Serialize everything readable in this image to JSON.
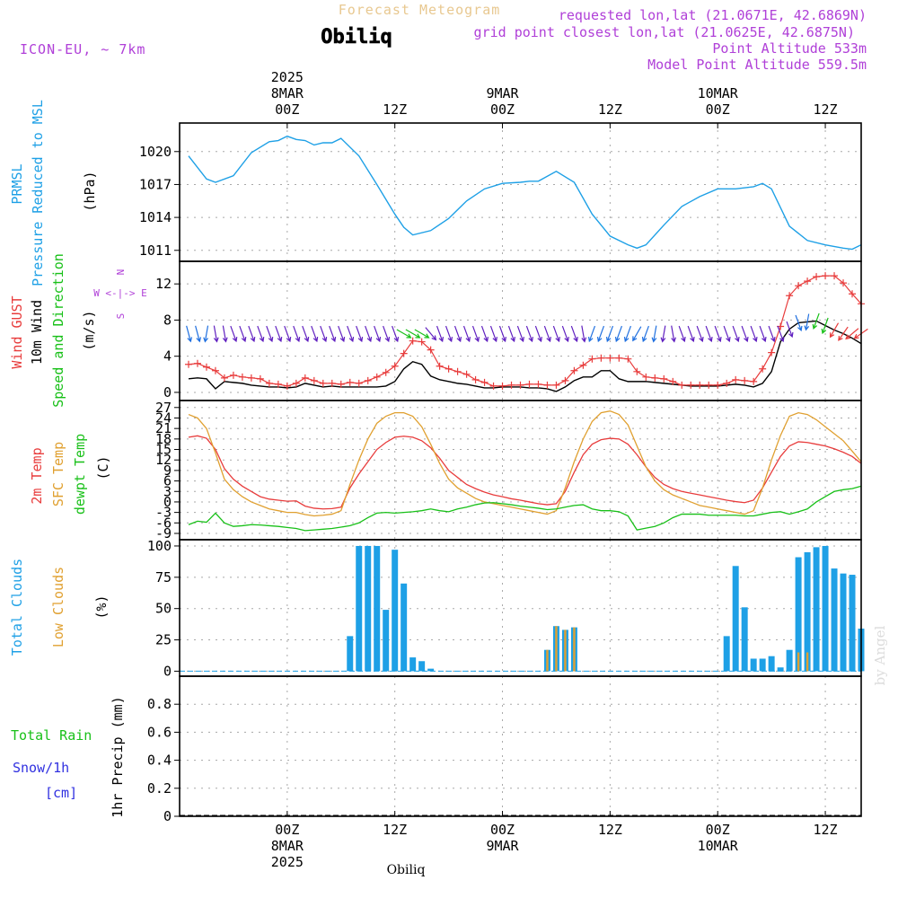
{
  "header": {
    "title": "Forecast Meteogram",
    "location": "Obiliq",
    "model": "ICON-EU, ~ 7km",
    "requested": "requested lon,lat (21.0671E, 42.6869N)",
    "gridpoint": "grid point closest lon,lat (21.0625E, 42.6875N)",
    "point_alt": "Point Altitude 533m",
    "model_alt": "Model Point Altitude 559.5m",
    "footer_location": "Obiliq",
    "watermark": "by Angel"
  },
  "colors": {
    "pressure": "#1ea0e6",
    "gust": "#e83c3c",
    "wind": "#000000",
    "wind_dir": "#18c018",
    "temp2m": "#e83c3c",
    "sfc": "#e0a030",
    "dewpt": "#18c018",
    "total_clouds": "#1ea0e6",
    "low_clouds": "#e0a030",
    "rain": "#18c018",
    "snow": "#3030e0",
    "purple": "#b040d8"
  },
  "time_axis": {
    "top": [
      {
        "h": 0,
        "lines": [
          "2025",
          "8MAR",
          "00Z"
        ]
      },
      {
        "h": 12,
        "lines": [
          "12Z"
        ]
      },
      {
        "h": 24,
        "lines": [
          "9MAR",
          "00Z"
        ]
      },
      {
        "h": 36,
        "lines": [
          "12Z"
        ]
      },
      {
        "h": 48,
        "lines": [
          "10MAR",
          "00Z"
        ]
      },
      {
        "h": 60,
        "lines": [
          "12Z"
        ]
      }
    ],
    "bottom": [
      {
        "h": 0,
        "lines": [
          "00Z",
          "8MAR",
          "2025"
        ]
      },
      {
        "h": 12,
        "lines": [
          "12Z"
        ]
      },
      {
        "h": 24,
        "lines": [
          "00Z",
          "9MAR"
        ]
      },
      {
        "h": 36,
        "lines": [
          "12Z"
        ]
      },
      {
        "h": 48,
        "lines": [
          "00Z",
          "10MAR"
        ]
      },
      {
        "h": 60,
        "lines": [
          "12Z"
        ]
      }
    ]
  },
  "panels": {
    "pressure": {
      "labels": [
        "PRMSL",
        "Pressure Reduced to MSL"
      ],
      "unit": "(hPa)"
    },
    "wind": {
      "labels": [
        "Wind GUST",
        "10m Wind",
        "Speed and Direction"
      ],
      "unit": "(m/s)",
      "compass": {
        "n": "N",
        "s": "S",
        "we": "W <-|-> E"
      }
    },
    "temp": {
      "labels": [
        "2m Temp",
        "SFC Temp",
        "dewpt Temp"
      ],
      "unit": "(C)"
    },
    "clouds": {
      "labels": [
        "Total Clouds",
        "Low Clouds"
      ],
      "unit": "(%)"
    },
    "precip": {
      "labels": [
        "Total Rain",
        "Snow/1h",
        "[cm]"
      ],
      "unit": "1hr Precip (mm)"
    }
  },
  "chart_data": [
    {
      "type": "line",
      "panel": "pressure",
      "ylabel": "(hPa)",
      "ylim": [
        1010,
        1022.6
      ],
      "yticks": [
        1011,
        1014,
        1017,
        1020
      ],
      "x": [
        -11,
        -9,
        -8,
        -6,
        -4,
        -2,
        -1,
        0,
        1,
        2,
        3,
        4,
        5,
        6,
        8,
        10,
        12,
        13,
        14,
        16,
        18,
        20,
        22,
        24,
        26,
        27,
        28,
        30,
        32,
        34,
        36,
        38,
        39,
        40,
        42,
        44,
        46,
        48,
        50,
        52,
        53,
        54,
        56,
        58,
        60,
        62,
        63,
        64
      ],
      "series": [
        {
          "name": "PRMSL",
          "values": [
            1019.6,
            1017.5,
            1017.2,
            1017.8,
            1019.9,
            1020.9,
            1021.0,
            1021.4,
            1021.1,
            1021.0,
            1020.6,
            1020.8,
            1020.8,
            1021.2,
            1019.6,
            1017.0,
            1014.3,
            1013.1,
            1012.4,
            1012.8,
            1013.9,
            1015.5,
            1016.6,
            1017.1,
            1017.2,
            1017.3,
            1017.3,
            1018.2,
            1017.2,
            1014.3,
            1012.3,
            1011.5,
            1011.2,
            1011.5,
            1013.3,
            1015.0,
            1015.9,
            1016.6,
            1016.6,
            1016.8,
            1017.1,
            1016.6,
            1013.2,
            1011.9,
            1011.5,
            1011.2,
            1011.1,
            1011.5
          ]
        }
      ]
    },
    {
      "type": "line",
      "panel": "wind",
      "ylabel": "(m/s)",
      "ylim": [
        -0.9,
        14.5
      ],
      "yticks": [
        0,
        4,
        8,
        12
      ],
      "x": [
        -11,
        -10,
        -9,
        -8,
        -7,
        -6,
        -5,
        -4,
        -3,
        -2,
        -1,
        0,
        1,
        2,
        3,
        4,
        5,
        6,
        7,
        8,
        9,
        10,
        11,
        12,
        13,
        14,
        15,
        16,
        17,
        18,
        19,
        20,
        21,
        22,
        23,
        24,
        25,
        26,
        27,
        28,
        29,
        30,
        31,
        32,
        33,
        34,
        35,
        36,
        37,
        38,
        39,
        40,
        41,
        42,
        43,
        44,
        45,
        46,
        47,
        48,
        49,
        50,
        51,
        52,
        53,
        54,
        55,
        56,
        57,
        58,
        59,
        60,
        61,
        62,
        63,
        64
      ],
      "series": [
        {
          "name": "Wind GUST",
          "values": [
            3.1,
            3.2,
            2.8,
            2.4,
            1.6,
            1.9,
            1.7,
            1.6,
            1.5,
            1.0,
            0.9,
            0.7,
            1.0,
            1.6,
            1.3,
            1.0,
            1.0,
            0.9,
            1.1,
            1.0,
            1.3,
            1.7,
            2.2,
            2.9,
            4.3,
            5.7,
            5.6,
            4.7,
            2.9,
            2.6,
            2.3,
            2.0,
            1.4,
            1.1,
            0.7,
            0.7,
            0.8,
            0.8,
            0.9,
            0.9,
            0.8,
            0.8,
            1.3,
            2.4,
            3.0,
            3.7,
            3.8,
            3.8,
            3.8,
            3.7,
            2.3,
            1.7,
            1.6,
            1.5,
            1.2,
            0.8,
            0.8,
            0.8,
            0.8,
            0.8,
            1.0,
            1.4,
            1.3,
            1.2,
            2.6,
            4.4,
            7.3,
            10.7,
            11.8,
            12.3,
            12.8,
            12.9,
            12.9,
            12.1,
            10.9,
            9.8
          ]
        },
        {
          "name": "10m Wind",
          "values": [
            1.5,
            1.6,
            1.5,
            0.4,
            1.2,
            1.1,
            1.0,
            0.8,
            0.7,
            0.6,
            0.6,
            0.5,
            0.6,
            1.0,
            0.8,
            0.6,
            0.7,
            0.6,
            0.6,
            0.6,
            0.6,
            0.6,
            0.7,
            1.2,
            2.6,
            3.4,
            3.1,
            1.8,
            1.4,
            1.2,
            1.0,
            0.9,
            0.7,
            0.5,
            0.5,
            0.6,
            0.6,
            0.6,
            0.5,
            0.5,
            0.4,
            0.1,
            0.6,
            1.3,
            1.7,
            1.7,
            2.4,
            2.4,
            1.5,
            1.2,
            1.2,
            1.2,
            1.1,
            1.0,
            0.9,
            0.8,
            0.7,
            0.7,
            0.7,
            0.7,
            0.8,
            0.9,
            0.8,
            0.6,
            1.0,
            2.3,
            5.6,
            7.0,
            7.7,
            7.8,
            7.9,
            7.4,
            6.9,
            6.5,
            6.0,
            5.4
          ]
        }
      ],
      "arrows": [
        [
          -11,
          345
        ],
        [
          -10,
          345
        ],
        [
          -9,
          10
        ],
        [
          -8,
          350
        ],
        [
          -7,
          350
        ],
        [
          -6,
          340
        ],
        [
          -5,
          340
        ],
        [
          -4,
          340
        ],
        [
          -3,
          340
        ],
        [
          -2,
          340
        ],
        [
          -1,
          340
        ],
        [
          0,
          340
        ],
        [
          1,
          340
        ],
        [
          2,
          340
        ],
        [
          3,
          340
        ],
        [
          4,
          340
        ],
        [
          5,
          340
        ],
        [
          6,
          340
        ],
        [
          7,
          340
        ],
        [
          8,
          340
        ],
        [
          9,
          340
        ],
        [
          10,
          340
        ],
        [
          11,
          340
        ],
        [
          12,
          340
        ],
        [
          13,
          300
        ],
        [
          14,
          300
        ],
        [
          15,
          300
        ],
        [
          16,
          320
        ],
        [
          17,
          340
        ],
        [
          18,
          340
        ],
        [
          19,
          340
        ],
        [
          20,
          340
        ],
        [
          21,
          340
        ],
        [
          22,
          340
        ],
        [
          23,
          340
        ],
        [
          24,
          340
        ],
        [
          25,
          340
        ],
        [
          26,
          340
        ],
        [
          27,
          340
        ],
        [
          28,
          340
        ],
        [
          29,
          340
        ],
        [
          30,
          340
        ],
        [
          31,
          340
        ],
        [
          32,
          340
        ],
        [
          33,
          350
        ],
        [
          34,
          20
        ],
        [
          35,
          20
        ],
        [
          36,
          20
        ],
        [
          37,
          20
        ],
        [
          38,
          20
        ],
        [
          39,
          30
        ],
        [
          40,
          20
        ],
        [
          41,
          10
        ],
        [
          42,
          10
        ],
        [
          43,
          350
        ],
        [
          44,
          340
        ],
        [
          45,
          340
        ],
        [
          46,
          340
        ],
        [
          47,
          340
        ],
        [
          48,
          340
        ],
        [
          49,
          340
        ],
        [
          50,
          340
        ],
        [
          51,
          340
        ],
        [
          52,
          340
        ],
        [
          53,
          340
        ],
        [
          54,
          340
        ],
        [
          55,
          340
        ],
        [
          56,
          340
        ],
        [
          57,
          340
        ],
        [
          58,
          10
        ],
        [
          59,
          20
        ],
        [
          60,
          20
        ],
        [
          61,
          30
        ],
        [
          62,
          35
        ],
        [
          63,
          50
        ],
        [
          64,
          55
        ]
      ]
    },
    {
      "type": "line",
      "panel": "temp",
      "ylabel": "(C)",
      "ylim": [
        -10.8,
        29.0
      ],
      "yticks": [
        -9,
        -6,
        -3,
        0,
        3,
        6,
        9,
        12,
        15,
        18,
        21,
        24,
        27
      ],
      "x": [
        -11,
        -10,
        -9,
        -8,
        -7,
        -6,
        -5,
        -4,
        -3,
        -2,
        -1,
        0,
        1,
        2,
        3,
        4,
        5,
        6,
        7,
        8,
        9,
        10,
        11,
        12,
        13,
        14,
        15,
        16,
        17,
        18,
        19,
        20,
        21,
        22,
        23,
        24,
        25,
        26,
        27,
        28,
        29,
        30,
        31,
        32,
        33,
        34,
        35,
        36,
        37,
        38,
        39,
        40,
        41,
        42,
        43,
        44,
        45,
        46,
        47,
        48,
        49,
        50,
        51,
        52,
        53,
        54,
        55,
        56,
        57,
        58,
        59,
        60,
        61,
        62,
        63,
        64
      ],
      "series": [
        {
          "name": "2m Temp",
          "values": [
            18.5,
            18.9,
            18.2,
            15.0,
            9.5,
            6.5,
            4.5,
            3.0,
            1.5,
            0.8,
            0.5,
            0.2,
            0.3,
            -1.2,
            -1.8,
            -2.0,
            -1.9,
            -1.5,
            4.0,
            8.0,
            11.5,
            15.0,
            17.0,
            18.5,
            18.8,
            18.5,
            17.5,
            15.5,
            12.5,
            9.0,
            7.0,
            5.0,
            3.8,
            2.8,
            2.0,
            1.5,
            0.9,
            0.5,
            0.0,
            -0.5,
            -0.8,
            -0.5,
            3.0,
            8.5,
            13.5,
            16.5,
            17.8,
            18.2,
            18.0,
            16.5,
            13.5,
            10.0,
            7.0,
            5.0,
            3.8,
            3.0,
            2.5,
            2.0,
            1.5,
            1.0,
            0.5,
            0.1,
            -0.2,
            0.5,
            4.0,
            8.5,
            13.0,
            16.0,
            17.2,
            17.0,
            16.5,
            16.0,
            15.2,
            14.2,
            13.0,
            11.0
          ]
        },
        {
          "name": "SFC Temp",
          "values": [
            25.0,
            24.0,
            21.0,
            14.0,
            6.5,
            3.5,
            1.5,
            0.0,
            -1.0,
            -2.0,
            -2.5,
            -3.0,
            -3.0,
            -3.6,
            -4.0,
            -3.8,
            -3.5,
            -2.5,
            5.0,
            12.0,
            18.0,
            22.5,
            24.5,
            25.5,
            25.5,
            24.5,
            21.5,
            16.5,
            11.0,
            6.5,
            4.0,
            2.5,
            1.0,
            0.0,
            -0.5,
            -1.0,
            -1.5,
            -2.0,
            -2.5,
            -3.0,
            -3.5,
            -2.5,
            4.0,
            11.5,
            18.0,
            23.0,
            25.5,
            26.0,
            25.0,
            22.0,
            16.0,
            10.0,
            6.0,
            3.5,
            2.0,
            1.0,
            0.0,
            -1.0,
            -1.5,
            -2.0,
            -2.5,
            -3.0,
            -3.5,
            -2.5,
            4.0,
            12.0,
            19.0,
            24.5,
            25.5,
            25.0,
            23.5,
            21.5,
            19.5,
            17.5,
            14.5,
            11.5
          ]
        },
        {
          "name": "dewpt Temp",
          "values": [
            -6.5,
            -5.5,
            -5.8,
            -3.2,
            -6.0,
            -7.0,
            -6.8,
            -6.5,
            -6.6,
            -6.8,
            -7.0,
            -7.3,
            -7.6,
            -8.2,
            -8.0,
            -7.8,
            -7.6,
            -7.2,
            -6.8,
            -6.0,
            -4.5,
            -3.2,
            -3.0,
            -3.2,
            -3.0,
            -2.8,
            -2.5,
            -2.0,
            -2.5,
            -2.8,
            -2.0,
            -1.5,
            -0.8,
            -0.3,
            -0.2,
            -0.5,
            -0.8,
            -1.2,
            -1.5,
            -1.8,
            -2.2,
            -2.0,
            -1.5,
            -1.0,
            -0.8,
            -2.0,
            -2.5,
            -2.5,
            -2.8,
            -4.0,
            -8.0,
            -7.5,
            -7.0,
            -6.0,
            -4.5,
            -3.5,
            -3.5,
            -3.5,
            -3.8,
            -3.8,
            -3.8,
            -3.8,
            -4.0,
            -4.0,
            -3.5,
            -3.0,
            -2.8,
            -3.5,
            -2.8,
            -2.0,
            0.0,
            1.5,
            3.0,
            3.5,
            3.8,
            4.5
          ]
        }
      ]
    },
    {
      "type": "bar",
      "panel": "clouds",
      "ylabel": "(%)",
      "ylim": [
        -4,
        105
      ],
      "yticks": [
        0,
        25,
        50,
        75,
        100
      ],
      "series": [
        {
          "name": "Total Clouds",
          "x": [
            7,
            8,
            9,
            10,
            11,
            12,
            13,
            14,
            15,
            16,
            29,
            30,
            31,
            32,
            49,
            50,
            51,
            52,
            53,
            54,
            55,
            56,
            57,
            58,
            59,
            60,
            61,
            62,
            63,
            64
          ],
          "values": [
            28,
            100,
            100,
            100,
            49,
            97,
            70,
            11,
            8,
            2,
            17,
            36,
            33,
            35,
            28,
            84,
            51,
            10,
            10,
            12,
            3,
            17,
            91,
            95,
            99,
            100,
            82,
            78,
            77,
            34
          ]
        },
        {
          "name": "Low Clouds",
          "x": [
            29,
            30,
            31,
            32,
            57,
            58
          ],
          "values": [
            17,
            36,
            33,
            35,
            15,
            15
          ]
        }
      ]
    },
    {
      "type": "bar",
      "panel": "precip",
      "ylabel": "1hr Precip (mm)",
      "ylim": [
        0,
        1.0
      ],
      "yticks": [
        0,
        0.2,
        0.4,
        0.6,
        0.8
      ],
      "series": [
        {
          "name": "Total Rain",
          "x": [],
          "values": []
        }
      ]
    }
  ]
}
